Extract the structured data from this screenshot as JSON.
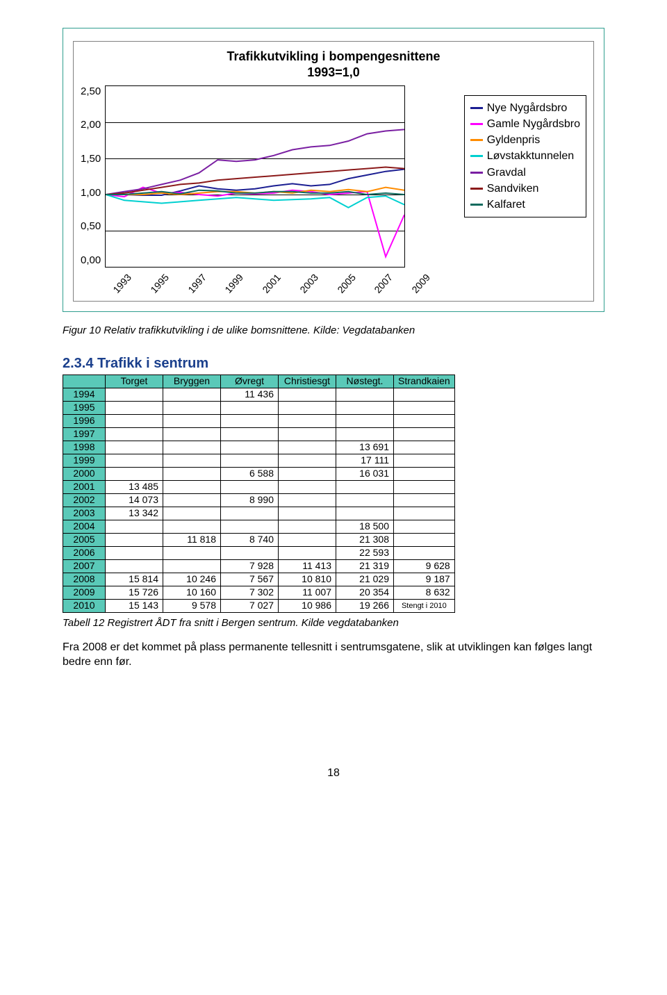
{
  "chart": {
    "title_line1": "Trafikkutvikling i bompengesnittene",
    "title_line2": "1993=1,0",
    "type": "line",
    "background_color": "#ffffff",
    "grid_color": "#000000",
    "ylim": [
      0,
      2.5
    ],
    "ytick_step": 0.5,
    "yticks": [
      "2,50",
      "2,00",
      "1,50",
      "1,00",
      "0,50",
      "0,00"
    ],
    "xticks": [
      "1993",
      "1995",
      "1997",
      "1999",
      "2001",
      "2003",
      "2005",
      "2007",
      "2009"
    ],
    "years": [
      1993,
      1994,
      1995,
      1996,
      1997,
      1998,
      1999,
      2000,
      2001,
      2002,
      2003,
      2004,
      2005,
      2006,
      2007,
      2008,
      2009
    ],
    "legend_fontsize": 16,
    "axis_fontsize": 15,
    "series": [
      {
        "name": "Nye Nygårdsbro",
        "color": "#1b1e92",
        "values": [
          1.0,
          1.0,
          0.99,
          0.99,
          1.05,
          1.12,
          1.08,
          1.06,
          1.08,
          1.12,
          1.15,
          1.12,
          1.14,
          1.22,
          1.27,
          1.32,
          1.35
        ]
      },
      {
        "name": "Gamle Nygårdsbro",
        "color": "#ff00ff",
        "values": [
          1.0,
          0.97,
          1.1,
          1.02,
          1.03,
          1.0,
          0.98,
          1.02,
          1.01,
          1.02,
          1.06,
          1.04,
          1.0,
          1.02,
          1.04,
          0.14,
          0.72
        ]
      },
      {
        "name": "Gyldenpris",
        "color": "#ff8c00",
        "values": [
          1.0,
          1.0,
          1.0,
          1.02,
          1.0,
          1.02,
          1.04,
          1.04,
          1.02,
          1.04,
          1.02,
          1.06,
          1.04,
          1.07,
          1.04,
          1.1,
          1.06
        ]
      },
      {
        "name": "Løvstakktunnelen",
        "color": "#00d0d0",
        "values": [
          1.0,
          0.92,
          0.9,
          0.88,
          0.9,
          0.92,
          0.94,
          0.96,
          0.94,
          0.92,
          0.93,
          0.94,
          0.96,
          0.82,
          0.96,
          0.98,
          0.86
        ]
      },
      {
        "name": "Gravdal",
        "color": "#7a1fa2",
        "values": [
          1.0,
          1.04,
          1.08,
          1.14,
          1.2,
          1.3,
          1.48,
          1.46,
          1.48,
          1.54,
          1.62,
          1.66,
          1.68,
          1.74,
          1.84,
          1.88,
          1.9
        ]
      },
      {
        "name": "Sandviken",
        "color": "#8b1a1a",
        "values": [
          1.0,
          1.02,
          1.06,
          1.1,
          1.14,
          1.16,
          1.2,
          1.22,
          1.24,
          1.26,
          1.28,
          1.3,
          1.32,
          1.34,
          1.36,
          1.38,
          1.36
        ]
      },
      {
        "name": "Kalfaret",
        "color": "#0f6b5e",
        "values": [
          1.0,
          1.0,
          1.02,
          1.04,
          1.01,
          1.06,
          1.05,
          1.02,
          1.02,
          1.04,
          1.04,
          1.02,
          1.02,
          1.04,
          1.0,
          1.02,
          1.0
        ]
      }
    ]
  },
  "figure_caption": "Figur 10 Relativ trafikkutvikling i de ulike bomsnittene. Kilde: Vegdatabanken",
  "section": {
    "number": "2.3.4",
    "title": "Trafikk i sentrum"
  },
  "table": {
    "columns": [
      "",
      "Torget",
      "Bryggen",
      "Øvregt",
      "Christiesgt",
      "Nøstegt.",
      "Strandkaien"
    ],
    "header_bg": "#5ac9b8",
    "rows": [
      {
        "year": "1994",
        "cells": [
          "",
          "",
          "11 436",
          "",
          "",
          ""
        ]
      },
      {
        "year": "1995",
        "cells": [
          "",
          "",
          "",
          "",
          "",
          ""
        ]
      },
      {
        "year": "1996",
        "cells": [
          "",
          "",
          "",
          "",
          "",
          ""
        ]
      },
      {
        "year": "1997",
        "cells": [
          "",
          "",
          "",
          "",
          "",
          ""
        ]
      },
      {
        "year": "1998",
        "cells": [
          "",
          "",
          "",
          "",
          "13 691",
          ""
        ]
      },
      {
        "year": "1999",
        "cells": [
          "",
          "",
          "",
          "",
          "17 111",
          ""
        ]
      },
      {
        "year": "2000",
        "cells": [
          "",
          "",
          "6 588",
          "",
          "16 031",
          ""
        ]
      },
      {
        "year": "2001",
        "cells": [
          "13 485",
          "",
          "",
          "",
          "",
          ""
        ]
      },
      {
        "year": "2002",
        "cells": [
          "14 073",
          "",
          "8 990",
          "",
          "",
          ""
        ]
      },
      {
        "year": "2003",
        "cells": [
          "13 342",
          "",
          "",
          "",
          "",
          ""
        ]
      },
      {
        "year": "2004",
        "cells": [
          "",
          "",
          "",
          "",
          "18 500",
          ""
        ]
      },
      {
        "year": "2005",
        "cells": [
          "",
          "11 818",
          "8 740",
          "",
          "21 308",
          ""
        ]
      },
      {
        "year": "2006",
        "cells": [
          "",
          "",
          "",
          "",
          "22 593",
          ""
        ]
      },
      {
        "year": "2007",
        "cells": [
          "",
          "",
          "7 928",
          "11 413",
          "21 319",
          "9 628"
        ]
      },
      {
        "year": "2008",
        "cells": [
          "15 814",
          "10 246",
          "7 567",
          "10 810",
          "21 029",
          "9 187"
        ]
      },
      {
        "year": "2009",
        "cells": [
          "15 726",
          "10 160",
          "7 302",
          "11 007",
          "20 354",
          "8 632"
        ]
      },
      {
        "year": "2010",
        "cells": [
          "15 143",
          "9 578",
          "7 027",
          "10 986",
          "19 266",
          "Stengt i 2010"
        ]
      }
    ]
  },
  "table_caption": "Tabell 12 Registrert ÅDT fra snitt i Bergen sentrum. Kilde vegdatabanken",
  "body_text": "Fra 2008 er det kommet på plass permanente tellesnitt i sentrumsgatene, slik at utviklingen kan følges langt bedre enn før.",
  "page_number": "18"
}
